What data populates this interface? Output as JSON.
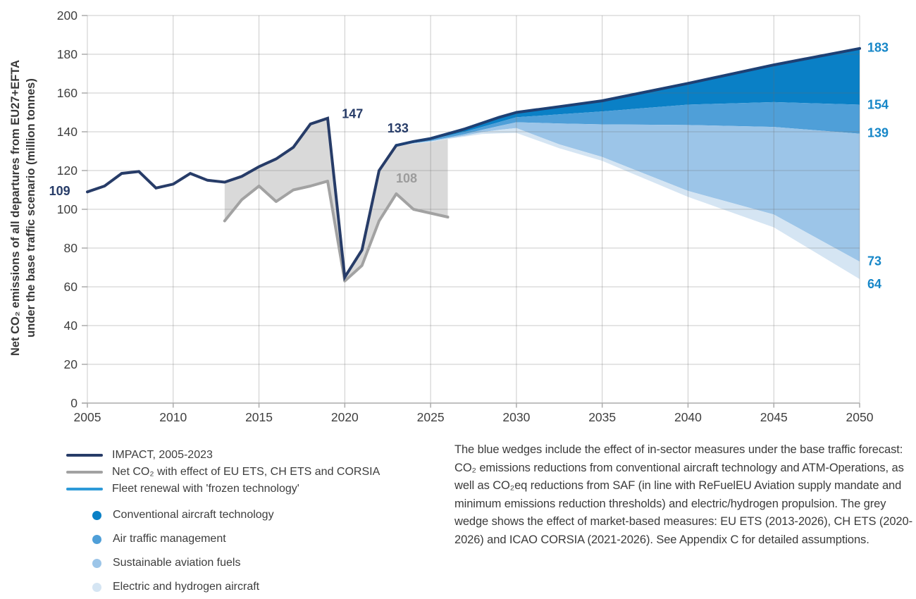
{
  "colors": {
    "impact_line": "#273c68",
    "frozen_top_line": "#1e4074",
    "grey_line": "#a2a2a2",
    "grey_fill": "#d9d9d9",
    "grey_label": "#9c9c9c",
    "blue_label": "#1787c8",
    "fleet_legend_line": "#2d9ad8",
    "wedge_conventional": "#0a80c6",
    "wedge_atm": "#4f9fd8",
    "wedge_saf": "#9cc5e8",
    "wedge_electric": "#d5e5f3",
    "axis_text": "#3f3f3f",
    "axis_line": "#ababab",
    "grid_rgba": "rgba(107,107,107,0.35)"
  },
  "chart_data": {
    "type": "area",
    "title": "",
    "ylabel_line1": "Net CO₂ emissions of all departures from EU27+EFTA",
    "ylabel_line2": "under the base traffic scenario (million tonnes)",
    "x_ticks": [
      2005,
      2010,
      2015,
      2020,
      2025,
      2030,
      2035,
      2040,
      2045,
      2050
    ],
    "y_ticks": [
      0,
      20,
      40,
      60,
      80,
      100,
      120,
      140,
      160,
      180,
      200
    ],
    "x_range": [
      2005,
      2050
    ],
    "y_range": [
      0,
      200
    ],
    "grid": true,
    "legend_position": "bottom-left",
    "series": {
      "impact": {
        "name": "IMPACT, 2005-2023",
        "years": [
          2005,
          2006,
          2007,
          2008,
          2009,
          2010,
          2011,
          2012,
          2013,
          2014,
          2015,
          2016,
          2017,
          2018,
          2019,
          2020,
          2021,
          2022,
          2023
        ],
        "values": [
          109,
          112,
          118.5,
          119.5,
          111,
          113,
          118.5,
          115,
          114,
          117,
          122,
          126,
          132,
          144,
          147,
          65,
          79,
          120,
          133
        ]
      },
      "net_co2_mbm": {
        "name": "Net CO₂ with effect of EU ETS, CH ETS and CORSIA",
        "years": [
          2013,
          2014,
          2015,
          2016,
          2017,
          2018,
          2019,
          2020,
          2021,
          2022,
          2023,
          2024,
          2025,
          2026
        ],
        "values": [
          94,
          105,
          112,
          104,
          110,
          112,
          114.5,
          63,
          71,
          94,
          108,
          100,
          98,
          96
        ],
        "grey_wedge_end_year": 2026
      },
      "frozen_fleet_renewal": {
        "name": "Fleet renewal with 'frozen technology'",
        "years": [
          2023,
          2024,
          2025,
          2026,
          2027,
          2028,
          2029,
          2030,
          2032.5,
          2035,
          2040,
          2045,
          2050
        ],
        "values": [
          133,
          135,
          136.5,
          139,
          141.5,
          144.5,
          147.5,
          150,
          153,
          156,
          165,
          174.5,
          183
        ]
      },
      "wedge_bounds": {
        "note": "cumulative lower boundaries of the blue reduction wedges, same years as frozen_fleet_renewal",
        "years": [
          2023,
          2024,
          2025,
          2026,
          2027,
          2028,
          2029,
          2030,
          2032.5,
          2035,
          2040,
          2045,
          2050
        ],
        "conventional_bottom": [
          133,
          134.5,
          136,
          138,
          140,
          142.5,
          145,
          147.5,
          149,
          150.5,
          154,
          155.3,
          154
        ],
        "atm_bottom": [
          133,
          134.2,
          135.3,
          137,
          138.8,
          141,
          143,
          144.9,
          144.3,
          143.8,
          143.5,
          142.5,
          139
        ],
        "saf_bottom": [
          133,
          134,
          135,
          136.6,
          138,
          139.8,
          141,
          141.9,
          133.5,
          127,
          109.5,
          97.3,
          73
        ],
        "electric_bottom": [
          133,
          133.8,
          134.7,
          136.3,
          137.5,
          138.8,
          139.2,
          139.4,
          131.5,
          125,
          106.4,
          90.7,
          64
        ]
      }
    },
    "point_labels": [
      {
        "text": "109",
        "year": 2004.0,
        "value": 109.5,
        "color": "navy",
        "anchor": "end"
      },
      {
        "text": "147",
        "year": 2020.45,
        "value": 149.3,
        "color": "navy",
        "anchor": "middle"
      },
      {
        "text": "133",
        "year": 2023.1,
        "value": 141.8,
        "color": "navy",
        "anchor": "middle"
      },
      {
        "text": "108",
        "year": 2023.6,
        "value": 116.0,
        "color": "grey",
        "anchor": "middle"
      },
      {
        "text": "183",
        "year": 2050.45,
        "value": 183.5,
        "color": "blue",
        "anchor": "start"
      },
      {
        "text": "154",
        "year": 2050.45,
        "value": 154.0,
        "color": "blue",
        "anchor": "start"
      },
      {
        "text": "139",
        "year": 2050.45,
        "value": 139.5,
        "color": "blue",
        "anchor": "start"
      },
      {
        "text": "73",
        "year": 2050.45,
        "value": 73.3,
        "color": "blue",
        "anchor": "start"
      },
      {
        "text": "64",
        "year": 2050.45,
        "value": 61.5,
        "color": "blue",
        "anchor": "start"
      }
    ]
  },
  "legend": {
    "lines": [
      {
        "label": "IMPACT, 2005-2023"
      },
      {
        "label": "Net CO₂ with effect of EU ETS, CH ETS and CORSIA"
      },
      {
        "label": "Fleet renewal with 'frozen technology'"
      }
    ],
    "dots": [
      {
        "label": "Conventional aircraft technology"
      },
      {
        "label": "Air traffic management"
      },
      {
        "label": "Sustainable aviation fuels"
      },
      {
        "label": "Electric and hydrogen aircraft"
      }
    ]
  },
  "annotation": "The blue wedges include the effect of in-sector measures under the base traffic forecast: CO₂ emissions reductions from conventional aircraft technology and ATM-Operations, as well as CO₂eq reductions from SAF (in line with ReFuelEU Aviation supply mandate and minimum emissions reduction thresholds) and electric/hydrogen propulsion. The grey wedge shows the effect of market-based measures: EU ETS (2013-2026), CH ETS (2020-2026) and ICAO CORSIA (2021-2026). See Appendix C for detailed assumptions."
}
